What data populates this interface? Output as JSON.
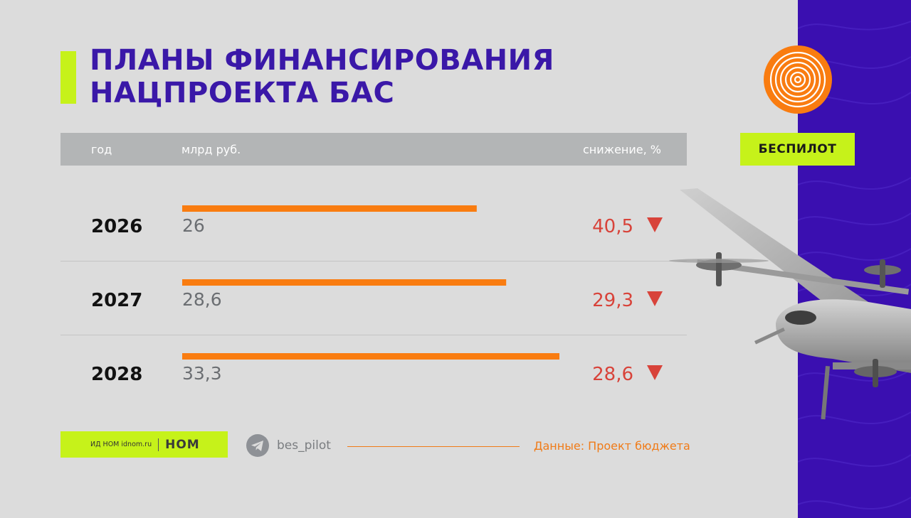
{
  "title": {
    "line1": "ПЛАНЫ ФИНАНСИРОВАНИЯ",
    "line2": "НАЦПРОЕКТА БАС"
  },
  "badge": "БЕСПИЛОТ",
  "footer": {
    "publisher": "ИД НОМ idnom.ru",
    "brand": "НОМ",
    "telegram_handle": "bes_pilot",
    "source": "Данные: Проект бюджета"
  },
  "colors": {
    "bar": "#f97c10",
    "drop": "#d8433a",
    "accent_lime": "#c6f21a",
    "title_purple": "#3a18a8",
    "band_purple": "#3a0fb0"
  },
  "icons": [
    "telegram-icon",
    "down-triangle-icon",
    "concentric-logo-icon",
    "drone-image"
  ],
  "chart_data": {
    "type": "bar",
    "orientation": "horizontal",
    "columns": {
      "year": "год",
      "value": "млрд руб.",
      "drop": "снижение, %"
    },
    "categories": [
      "2026",
      "2027",
      "2028"
    ],
    "values": [
      26,
      28.6,
      33.3
    ],
    "value_labels": [
      "26",
      "28,6",
      "33,3"
    ],
    "drop_values": [
      40.5,
      29.3,
      28.6
    ],
    "drop_labels": [
      "40,5",
      "29,3",
      "28,6"
    ],
    "unit": "млрд руб.",
    "xlim": [
      0,
      33.3
    ]
  }
}
